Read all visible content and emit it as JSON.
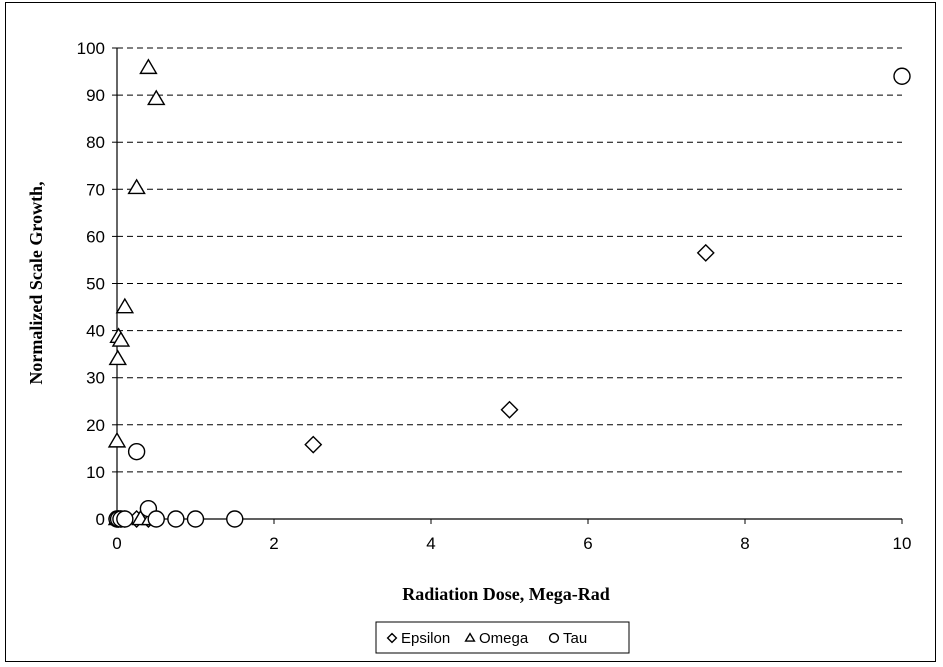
{
  "chart_data": {
    "type": "scatter",
    "title": "",
    "xlabel": "Radiation Dose, Mega-Rad",
    "ylabel": "Normalized Scale Growth,",
    "xlim": [
      0,
      10
    ],
    "ylim": [
      0,
      100
    ],
    "x_ticks": [
      "0",
      "2",
      "4",
      "6",
      "8",
      "10"
    ],
    "y_ticks": [
      "0",
      "10",
      "20",
      "30",
      "40",
      "50",
      "60",
      "70",
      "80",
      "90",
      "100"
    ],
    "grid": "horizontal dashed",
    "legend_position": "bottom",
    "series": [
      {
        "name": "Epsilon",
        "marker": "diamond",
        "points": [
          [
            0,
            0
          ],
          [
            0.02,
            0
          ],
          [
            0.05,
            0
          ],
          [
            0.1,
            0
          ],
          [
            0.25,
            0
          ],
          [
            0.4,
            0
          ],
          [
            2.5,
            15.8
          ],
          [
            5,
            23.2
          ],
          [
            7.5,
            56.5
          ]
        ]
      },
      {
        "name": "Omega",
        "marker": "triangle",
        "points": [
          [
            0,
            0
          ],
          [
            0,
            16.5
          ],
          [
            0.01,
            34
          ],
          [
            0.02,
            38.7
          ],
          [
            0.05,
            37.9
          ],
          [
            0.1,
            45
          ],
          [
            0.25,
            70.3
          ],
          [
            0.4,
            95.8
          ],
          [
            0.5,
            89.2
          ],
          [
            0.3,
            0
          ],
          [
            0.42,
            0
          ]
        ]
      },
      {
        "name": "Tau",
        "marker": "circle",
        "points": [
          [
            0,
            0
          ],
          [
            0.02,
            0
          ],
          [
            0.05,
            0
          ],
          [
            0.1,
            0
          ],
          [
            0.25,
            14.3
          ],
          [
            0.4,
            2.2
          ],
          [
            0.5,
            0
          ],
          [
            0.75,
            0
          ],
          [
            1,
            0
          ],
          [
            1.5,
            0
          ],
          [
            10,
            94
          ]
        ]
      }
    ]
  }
}
